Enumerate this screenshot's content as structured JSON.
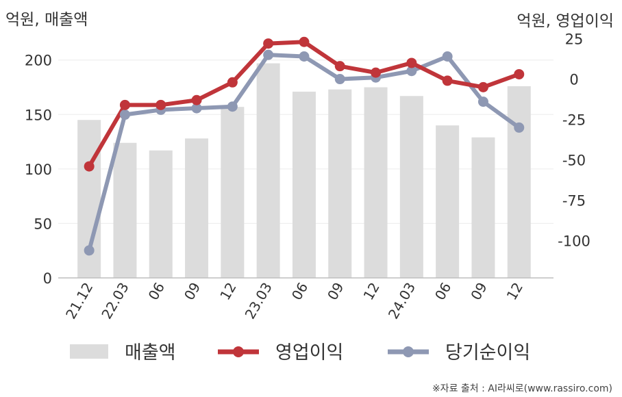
{
  "chart_data": {
    "type": "bar+line",
    "categories": [
      "21.12",
      "22.03",
      "06",
      "09",
      "12",
      "23.03",
      "06",
      "09",
      "12",
      "24.03",
      "06",
      "09",
      "12"
    ],
    "left_axis": {
      "label": "억원, 매출액",
      "ticks": [
        "0",
        "50",
        "100",
        "150",
        "200"
      ],
      "ylim": [
        0,
        230
      ]
    },
    "right_axis": {
      "label": "억원, 영업이익",
      "ticks": [
        "25",
        "0",
        "-25",
        "-50",
        "-75",
        "-100"
      ],
      "ylim": [
        -123,
        32
      ]
    },
    "series": [
      {
        "name": "매출액",
        "type": "bar",
        "axis": "left",
        "color": "#dcdcdc",
        "values": [
          145,
          124,
          117,
          128,
          157,
          197,
          171,
          173,
          175,
          167,
          140,
          129,
          176
        ]
      },
      {
        "name": "영업이익",
        "type": "line",
        "axis": "right",
        "color": "#c0353a",
        "values": [
          -54,
          -16,
          -16,
          -13,
          -2,
          22,
          23,
          8,
          4,
          10,
          -1,
          -5,
          3
        ]
      },
      {
        "name": "당기순이익",
        "type": "line",
        "axis": "right",
        "color": "#8e98b3",
        "values": [
          -106,
          -22,
          -19,
          -18,
          -17,
          15,
          14,
          0,
          1,
          5,
          14,
          -14,
          -30
        ]
      }
    ],
    "grid": true,
    "legend_position": "bottom"
  },
  "credit": "※자료 출처 : AI라씨로(www.rassiro.com)"
}
